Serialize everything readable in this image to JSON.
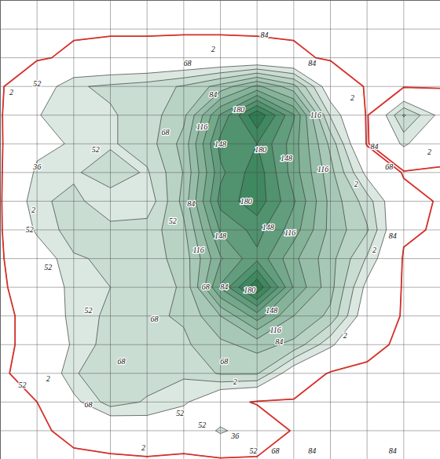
{
  "chart_data": {
    "type": "contour",
    "xlim": [
      0,
      12
    ],
    "ylim": [
      0,
      16
    ],
    "xticks": [
      0,
      1,
      2,
      3,
      4,
      5,
      6,
      7,
      8,
      9,
      10,
      11,
      12
    ],
    "yticks": [
      0,
      1,
      2,
      3,
      4,
      5,
      6,
      7,
      8,
      9,
      10,
      11,
      12,
      13,
      14,
      15,
      16
    ],
    "grid": true,
    "tick_labels": false,
    "color": "#2f7d52",
    "thresholds": [
      2,
      36,
      52,
      68,
      84,
      100,
      116,
      132,
      148,
      164,
      180,
      196
    ],
    "cells": [
      [
        0,
        0,
        0,
        0,
        0,
        0,
        0,
        0,
        0,
        0,
        0,
        0,
        0
      ],
      [
        0,
        0,
        0,
        0,
        0,
        0,
        0,
        0,
        0,
        0,
        0,
        0,
        0
      ],
      [
        0,
        0,
        5,
        8,
        8,
        10,
        10,
        8,
        5,
        0,
        0,
        0,
        0
      ],
      [
        0,
        20,
        50,
        55,
        60,
        70,
        90,
        120,
        90,
        20,
        0,
        0,
        0
      ],
      [
        0,
        35,
        45,
        50,
        60,
        80,
        150,
        210,
        150,
        50,
        0,
        70,
        30
      ],
      [
        0,
        30,
        38,
        50,
        60,
        90,
        170,
        180,
        140,
        80,
        0,
        40,
        10
      ],
      [
        0,
        40,
        50,
        60,
        50,
        85,
        160,
        190,
        140,
        90,
        30,
        0,
        0
      ],
      [
        0,
        50,
        55,
        45,
        40,
        90,
        170,
        190,
        150,
        95,
        60,
        10,
        0
      ],
      [
        0,
        40,
        60,
        55,
        60,
        80,
        150,
        170,
        140,
        95,
        70,
        5,
        0
      ],
      [
        0,
        20,
        50,
        55,
        60,
        75,
        130,
        160,
        120,
        90,
        50,
        0,
        0
      ],
      [
        0,
        10,
        45,
        52,
        60,
        70,
        150,
        210,
        130,
        90,
        30,
        0,
        0
      ],
      [
        0,
        5,
        45,
        55,
        65,
        70,
        100,
        140,
        100,
        80,
        20,
        0,
        0
      ],
      [
        0,
        5,
        40,
        60,
        55,
        65,
        80,
        90,
        80,
        40,
        5,
        0,
        0
      ],
      [
        0,
        8,
        50,
        65,
        60,
        55,
        70,
        70,
        20,
        0,
        0,
        0,
        0
      ],
      [
        0,
        2,
        30,
        60,
        50,
        40,
        10,
        0,
        0,
        0,
        0,
        0,
        0
      ],
      [
        0,
        0,
        5,
        10,
        20,
        10,
        40,
        20,
        0,
        0,
        0,
        0,
        0
      ],
      [
        0,
        0,
        0,
        0,
        0,
        0,
        0,
        0,
        0,
        0,
        0,
        0,
        0
      ]
    ],
    "contour_labels": [
      {
        "x": 5.8,
        "y": 1.7,
        "value": 2
      },
      {
        "x": 5.1,
        "y": 2.2,
        "value": 68
      },
      {
        "x": 7.2,
        "y": 1.2,
        "value": 84
      },
      {
        "x": 8.5,
        "y": 2.2,
        "value": 84
      },
      {
        "x": 0.3,
        "y": 3.2,
        "value": 2
      },
      {
        "x": 1.0,
        "y": 2.9,
        "value": 52
      },
      {
        "x": 9.6,
        "y": 3.4,
        "value": 2
      },
      {
        "x": 8.6,
        "y": 4.0,
        "value": 116
      },
      {
        "x": 5.8,
        "y": 3.3,
        "value": 84
      },
      {
        "x": 4.5,
        "y": 4.6,
        "value": 68
      },
      {
        "x": 6.5,
        "y": 3.8,
        "value": 180
      },
      {
        "x": 6.0,
        "y": 5.0,
        "value": 148
      },
      {
        "x": 7.8,
        "y": 5.5,
        "value": 148
      },
      {
        "x": 5.5,
        "y": 4.4,
        "value": 116
      },
      {
        "x": 7.1,
        "y": 5.2,
        "value": 180
      },
      {
        "x": 1.0,
        "y": 5.8,
        "value": 36
      },
      {
        "x": 2.6,
        "y": 5.2,
        "value": 52
      },
      {
        "x": 8.8,
        "y": 5.9,
        "value": 116
      },
      {
        "x": 9.7,
        "y": 6.4,
        "value": 2
      },
      {
        "x": 10.2,
        "y": 5.1,
        "value": 84
      },
      {
        "x": 10.6,
        "y": 5.8,
        "value": 68
      },
      {
        "x": 11.7,
        "y": 5.3,
        "value": 2
      },
      {
        "x": 0.9,
        "y": 7.3,
        "value": 2
      },
      {
        "x": 0.8,
        "y": 8.0,
        "value": 52
      },
      {
        "x": 4.7,
        "y": 7.7,
        "value": 52
      },
      {
        "x": 5.2,
        "y": 7.1,
        "value": 84
      },
      {
        "x": 6.7,
        "y": 7.0,
        "value": 180
      },
      {
        "x": 6.0,
        "y": 8.2,
        "value": 148
      },
      {
        "x": 7.3,
        "y": 7.9,
        "value": 148
      },
      {
        "x": 7.9,
        "y": 8.1,
        "value": 116
      },
      {
        "x": 5.4,
        "y": 8.7,
        "value": 116
      },
      {
        "x": 10.2,
        "y": 8.7,
        "value": 2
      },
      {
        "x": 10.7,
        "y": 8.2,
        "value": 84
      },
      {
        "x": 1.3,
        "y": 9.3,
        "value": 52
      },
      {
        "x": 5.6,
        "y": 10.0,
        "value": 68
      },
      {
        "x": 6.1,
        "y": 10.0,
        "value": 84
      },
      {
        "x": 6.8,
        "y": 10.1,
        "value": 180
      },
      {
        "x": 7.4,
        "y": 10.8,
        "value": 148
      },
      {
        "x": 7.5,
        "y": 11.5,
        "value": 116
      },
      {
        "x": 7.6,
        "y": 11.9,
        "value": 84
      },
      {
        "x": 9.4,
        "y": 11.7,
        "value": 2
      },
      {
        "x": 2.4,
        "y": 10.8,
        "value": 52
      },
      {
        "x": 4.2,
        "y": 11.1,
        "value": 68
      },
      {
        "x": 6.1,
        "y": 12.6,
        "value": 68
      },
      {
        "x": 6.4,
        "y": 13.3,
        "value": 2
      },
      {
        "x": 0.6,
        "y": 13.4,
        "value": 52
      },
      {
        "x": 1.3,
        "y": 13.2,
        "value": 2
      },
      {
        "x": 2.4,
        "y": 14.1,
        "value": 68
      },
      {
        "x": 3.3,
        "y": 12.6,
        "value": 68
      },
      {
        "x": 4.9,
        "y": 14.4,
        "value": 52
      },
      {
        "x": 3.9,
        "y": 15.6,
        "value": 2
      },
      {
        "x": 5.5,
        "y": 14.8,
        "value": 52
      },
      {
        "x": 6.4,
        "y": 15.2,
        "value": 36
      },
      {
        "x": 6.9,
        "y": 15.7,
        "value": 52
      },
      {
        "x": 7.5,
        "y": 15.7,
        "value": 68
      },
      {
        "x": 8.5,
        "y": 15.7,
        "value": 84
      },
      {
        "x": 10.7,
        "y": 15.7,
        "value": 84
      }
    ]
  }
}
